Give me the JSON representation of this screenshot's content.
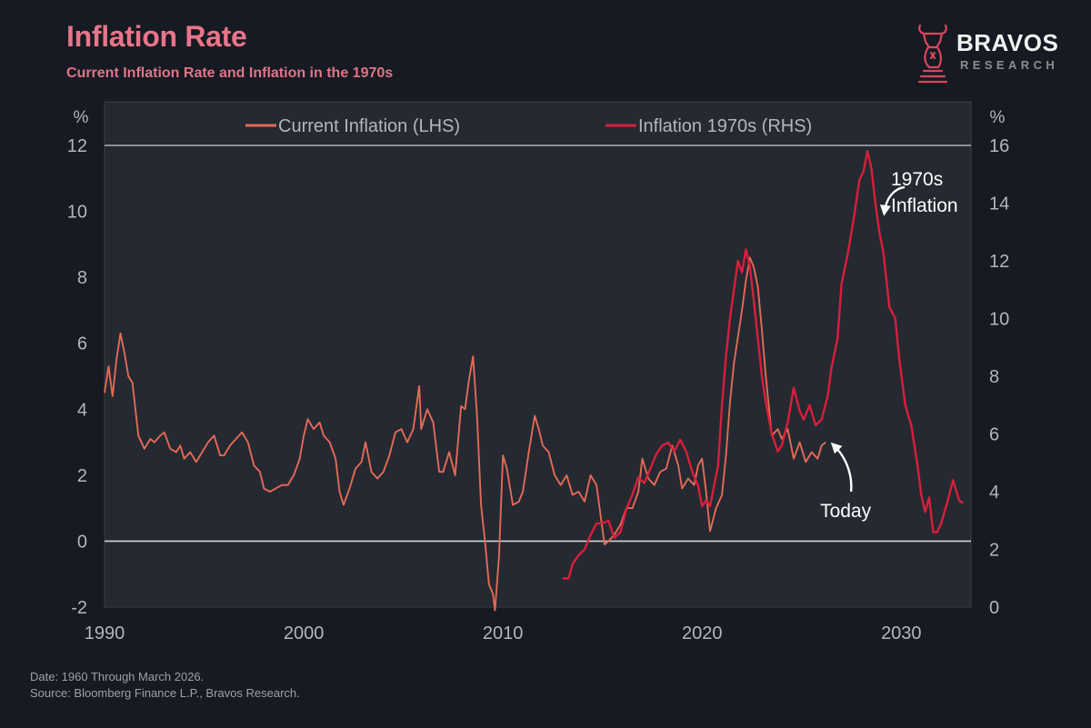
{
  "header": {
    "title": "Inflation Rate",
    "subtitle": "Current Inflation Rate and Inflation in the 1970s"
  },
  "logo": {
    "name": "BRAVOS",
    "subtitle": "RESEARCH",
    "icon": "bull-knight-icon"
  },
  "footer": {
    "date_note": "Date: 1960 Through March 2026.",
    "source_note": "Source: Bloomberg Finance L.P., Bravos Research."
  },
  "colors": {
    "background": "#161a22",
    "plot_background": "#252931",
    "current": "#e46a57",
    "seventies": "#d81f3c",
    "axis_text": "#b2b6bd",
    "title": "#e8758a"
  },
  "chart_data": {
    "type": "line",
    "x_axis": {
      "label": "",
      "range": [
        1990,
        2033.5
      ],
      "ticks": [
        "1990",
        "2000",
        "2010",
        "2020",
        "2030"
      ]
    },
    "y_left": {
      "unit": "%",
      "range": [
        -2,
        12
      ],
      "ticks": [
        "-2",
        "0",
        "2",
        "4",
        "6",
        "8",
        "10",
        "12"
      ]
    },
    "y_right": {
      "unit": "%",
      "range": [
        0,
        16
      ],
      "ticks": [
        "0",
        "2",
        "4",
        "6",
        "8",
        "10",
        "12",
        "14",
        "16"
      ]
    },
    "legend": {
      "placement": "top-center",
      "entries": [
        "Current Inflation (LHS)",
        "Inflation 1970s (RHS)"
      ]
    },
    "series": [
      {
        "name": "Current Inflation (LHS)",
        "axis": "left",
        "x": [
          1990.0,
          1990.2,
          1990.4,
          1990.6,
          1990.8,
          1991.0,
          1991.2,
          1991.4,
          1991.7,
          1992.0,
          1992.3,
          1992.5,
          1992.8,
          1993.0,
          1993.3,
          1993.6,
          1993.8,
          1994.0,
          1994.3,
          1994.6,
          1994.9,
          1995.2,
          1995.5,
          1995.8,
          1996.0,
          1996.3,
          1996.6,
          1996.9,
          1997.2,
          1997.5,
          1997.8,
          1998.0,
          1998.3,
          1998.6,
          1998.9,
          1999.2,
          1999.5,
          1999.8,
          2000.0,
          2000.2,
          2000.5,
          2000.8,
          2001.0,
          2001.3,
          2001.6,
          2001.8,
          2002.0,
          2002.3,
          2002.6,
          2002.9,
          2003.1,
          2003.4,
          2003.7,
          2004.0,
          2004.3,
          2004.6,
          2004.9,
          2005.2,
          2005.5,
          2005.8,
          2005.9,
          2006.2,
          2006.5,
          2006.8,
          2007.0,
          2007.3,
          2007.6,
          2007.9,
          2008.1,
          2008.3,
          2008.5,
          2008.7,
          2008.9,
          2009.1,
          2009.3,
          2009.5,
          2009.6,
          2009.8,
          2010.0,
          2010.2,
          2010.5,
          2010.8,
          2011.0,
          2011.3,
          2011.6,
          2011.8,
          2012.0,
          2012.3,
          2012.6,
          2012.9,
          2013.2,
          2013.5,
          2013.8,
          2014.1,
          2014.4,
          2014.7,
          2014.9,
          2015.1,
          2015.3,
          2015.6,
          2015.9,
          2016.2,
          2016.5,
          2016.8,
          2017.0,
          2017.3,
          2017.6,
          2017.9,
          2018.2,
          2018.5,
          2018.8,
          2019.0,
          2019.3,
          2019.6,
          2019.8,
          2020.0,
          2020.2,
          2020.4,
          2020.7,
          2021.0,
          2021.2,
          2021.4,
          2021.6,
          2021.8,
          2022.0,
          2022.2,
          2022.4,
          2022.6,
          2022.8,
          2023.0,
          2023.2,
          2023.5,
          2023.8,
          2024.0,
          2024.3,
          2024.6,
          2024.9,
          2025.2,
          2025.5,
          2025.8,
          2026.0,
          2026.2
        ],
        "y": [
          4.5,
          5.3,
          4.4,
          5.5,
          6.3,
          5.7,
          5.0,
          4.8,
          3.2,
          2.8,
          3.1,
          3.0,
          3.2,
          3.3,
          2.8,
          2.7,
          2.9,
          2.5,
          2.7,
          2.4,
          2.7,
          3.0,
          3.2,
          2.6,
          2.6,
          2.9,
          3.1,
          3.3,
          3.0,
          2.3,
          2.1,
          1.6,
          1.5,
          1.6,
          1.7,
          1.7,
          2.0,
          2.5,
          3.2,
          3.7,
          3.4,
          3.6,
          3.2,
          3.0,
          2.5,
          1.5,
          1.1,
          1.6,
          2.2,
          2.4,
          3.0,
          2.1,
          1.9,
          2.1,
          2.6,
          3.3,
          3.4,
          3.0,
          3.4,
          4.7,
          3.4,
          4.0,
          3.6,
          2.1,
          2.1,
          2.7,
          2.0,
          4.1,
          4.0,
          4.9,
          5.6,
          3.8,
          1.1,
          0.0,
          -1.3,
          -1.6,
          -2.1,
          -0.5,
          2.6,
          2.2,
          1.1,
          1.2,
          1.5,
          2.7,
          3.8,
          3.4,
          2.9,
          2.7,
          2.0,
          1.7,
          2.0,
          1.4,
          1.5,
          1.2,
          2.0,
          1.7,
          0.8,
          -0.1,
          0.0,
          0.2,
          0.5,
          1.0,
          1.0,
          1.5,
          2.5,
          1.9,
          1.7,
          2.1,
          2.2,
          2.9,
          2.3,
          1.6,
          1.9,
          1.7,
          2.3,
          2.5,
          1.5,
          0.3,
          1.0,
          1.4,
          2.6,
          4.2,
          5.4,
          6.2,
          7.0,
          7.9,
          8.6,
          8.3,
          7.7,
          6.4,
          5.0,
          3.2,
          3.4,
          3.1,
          3.4,
          2.5,
          3.0,
          2.4,
          2.7,
          2.5,
          2.9,
          3.0
        ]
      },
      {
        "name": "Inflation 1970s (RHS)",
        "axis": "right",
        "x": [
          2013.0,
          2013.3,
          2013.5,
          2013.8,
          2014.1,
          2014.4,
          2014.7,
          2015.0,
          2015.3,
          2015.6,
          2015.9,
          2016.2,
          2016.5,
          2016.8,
          2017.1,
          2017.4,
          2017.7,
          2018.0,
          2018.3,
          2018.6,
          2018.9,
          2019.2,
          2019.5,
          2019.8,
          2020.0,
          2020.2,
          2020.4,
          2020.6,
          2020.8,
          2021.0,
          2021.2,
          2021.4,
          2021.6,
          2021.8,
          2022.0,
          2022.2,
          2022.4,
          2022.6,
          2022.8,
          2023.0,
          2023.2,
          2023.5,
          2023.8,
          2024.0,
          2024.3,
          2024.6,
          2024.9,
          2025.1,
          2025.4,
          2025.7,
          2026.0,
          2026.3,
          2026.5,
          2026.8,
          2027.0,
          2027.3,
          2027.6,
          2027.9,
          2028.1,
          2028.3,
          2028.5,
          2028.7,
          2028.9,
          2029.1,
          2029.4,
          2029.7,
          2029.9,
          2030.2,
          2030.5,
          2030.8,
          2031.0,
          2031.2,
          2031.4,
          2031.6,
          2031.8,
          2032.0,
          2032.3,
          2032.6,
          2032.9,
          2033.1
        ],
        "y": [
          1.0,
          1.0,
          1.5,
          1.8,
          2.0,
          2.5,
          2.9,
          2.9,
          3.0,
          2.4,
          2.6,
          3.4,
          3.9,
          4.5,
          4.3,
          4.8,
          5.3,
          5.6,
          5.7,
          5.4,
          5.8,
          5.4,
          4.7,
          4.2,
          3.5,
          3.7,
          3.5,
          4.2,
          4.9,
          7.0,
          8.7,
          10.0,
          11.0,
          12.0,
          11.6,
          12.4,
          11.8,
          10.6,
          9.3,
          8.0,
          7.1,
          6.0,
          5.4,
          5.6,
          6.4,
          7.6,
          6.8,
          6.5,
          7.0,
          6.3,
          6.5,
          7.3,
          8.3,
          9.3,
          11.2,
          12.2,
          13.4,
          14.8,
          15.1,
          15.8,
          15.2,
          14.0,
          13.0,
          12.3,
          10.4,
          10.0,
          8.6,
          7.0,
          6.3,
          5.0,
          3.9,
          3.3,
          3.8,
          2.6,
          2.6,
          2.9,
          3.6,
          4.4,
          3.7,
          3.6
        ]
      }
    ],
    "annotations": [
      {
        "text": "Today",
        "target_x": 2026.2,
        "target_y_left": 3.1,
        "axis": "left"
      },
      {
        "text": "1970s",
        "line2": "Inflation",
        "target_x": 2028.8,
        "target_y_right": 13.8,
        "axis": "right"
      }
    ]
  }
}
